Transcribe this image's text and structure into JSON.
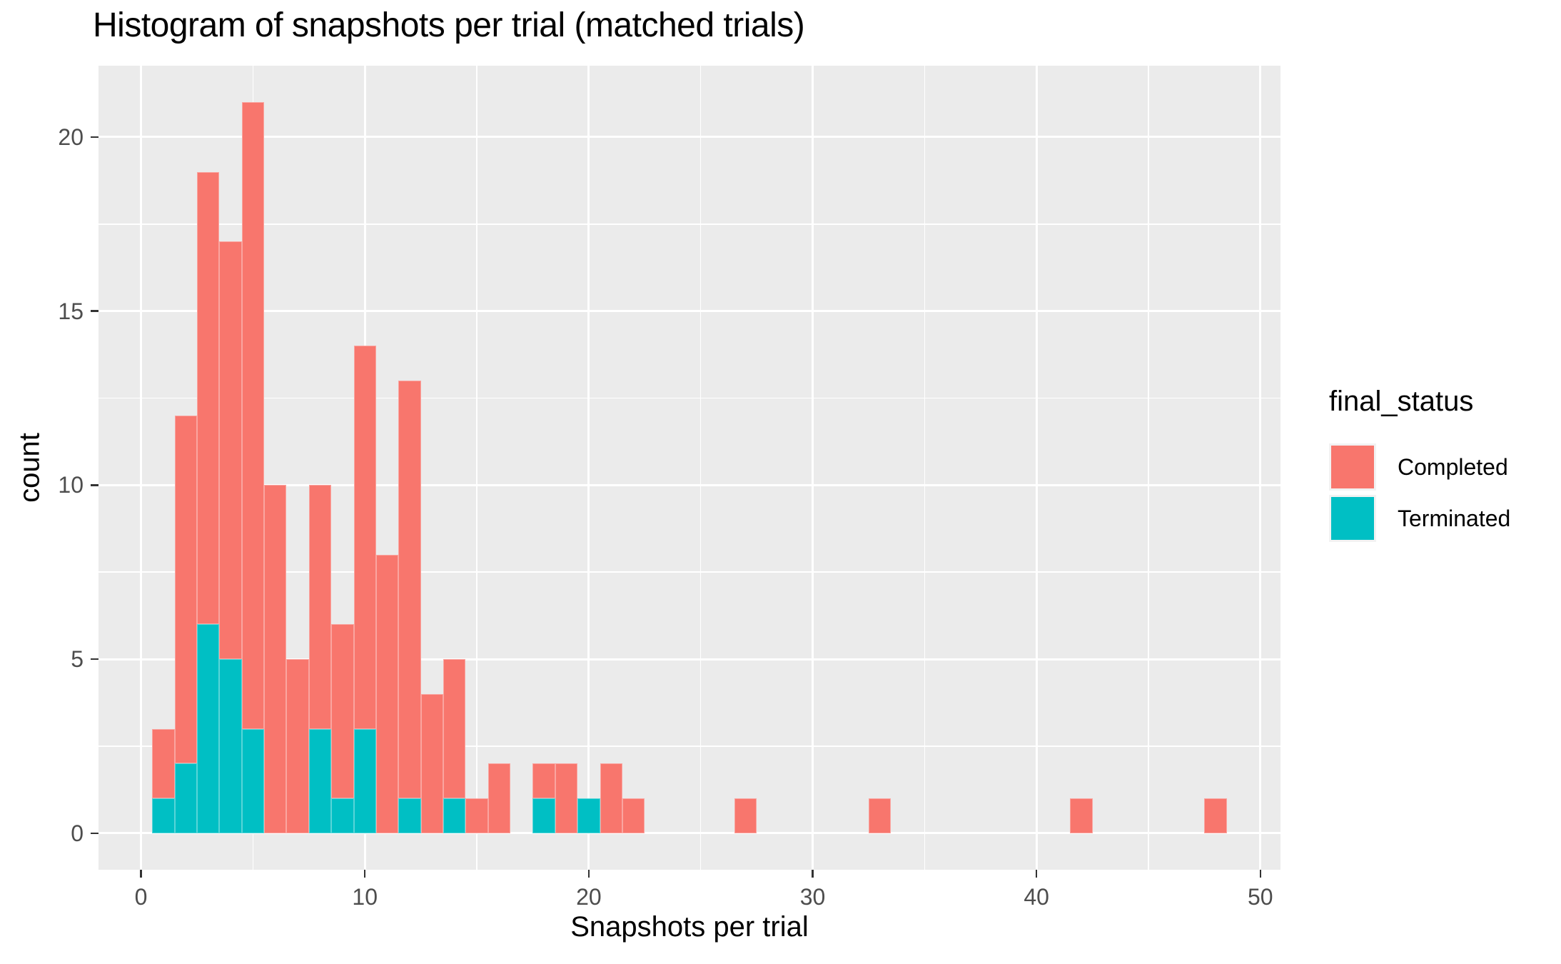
{
  "title": "Histogram of snapshots per trial (matched trials)",
  "axes": {
    "x": {
      "label": "Snapshots per trial"
    },
    "y": {
      "label": "count"
    }
  },
  "legend": {
    "title": "final_status",
    "items": [
      {
        "label": "Completed",
        "color": "#F8766D"
      },
      {
        "label": "Terminated",
        "color": "#00BFC4"
      }
    ]
  },
  "colors": {
    "completed": "#F8766D",
    "terminated": "#00BFC4",
    "panel_background": "#EBEBEB",
    "gridline": "#FFFFFF",
    "tick_mark": "#333333",
    "tick_text": "#4D4D4D",
    "axis_text": "#000000"
  },
  "chart_data": {
    "type": "bar",
    "subtype": "stacked-histogram",
    "title": "Histogram of snapshots per trial (matched trials)",
    "xlabel": "Snapshots per trial",
    "ylabel": "count",
    "grid": true,
    "legend_position": "right",
    "bin_width": 1,
    "stack_order_bottom_to_top": [
      "Terminated",
      "Completed"
    ],
    "x_ticks_major": [
      0,
      10,
      20,
      30,
      40,
      50
    ],
    "x_ticks_minor": [
      5,
      15,
      25,
      35,
      45
    ],
    "y_ticks_major": [
      0,
      5,
      10,
      15,
      20
    ],
    "y_ticks_minor": [
      2.5,
      7.5,
      12.5,
      17.5
    ],
    "x_panel_range": [
      -1.9,
      50.9
    ],
    "y_panel_range": [
      -1.05,
      22.05
    ],
    "xlim": [
      0,
      50
    ],
    "ylim": [
      0,
      21
    ],
    "bins": [
      {
        "x": 1,
        "Terminated": 1,
        "Completed": 2,
        "total": 3
      },
      {
        "x": 2,
        "Terminated": 2,
        "Completed": 10,
        "total": 12
      },
      {
        "x": 3,
        "Terminated": 6,
        "Completed": 13,
        "total": 19
      },
      {
        "x": 4,
        "Terminated": 5,
        "Completed": 12,
        "total": 17
      },
      {
        "x": 5,
        "Terminated": 3,
        "Completed": 18,
        "total": 21
      },
      {
        "x": 6,
        "Terminated": 0,
        "Completed": 10,
        "total": 10
      },
      {
        "x": 7,
        "Terminated": 0,
        "Completed": 5,
        "total": 5
      },
      {
        "x": 8,
        "Terminated": 3,
        "Completed": 7,
        "total": 10
      },
      {
        "x": 9,
        "Terminated": 1,
        "Completed": 5,
        "total": 6
      },
      {
        "x": 10,
        "Terminated": 3,
        "Completed": 11,
        "total": 14
      },
      {
        "x": 11,
        "Terminated": 0,
        "Completed": 8,
        "total": 8
      },
      {
        "x": 12,
        "Terminated": 1,
        "Completed": 12,
        "total": 13
      },
      {
        "x": 13,
        "Terminated": 0,
        "Completed": 4,
        "total": 4
      },
      {
        "x": 14,
        "Terminated": 1,
        "Completed": 4,
        "total": 5
      },
      {
        "x": 15,
        "Terminated": 0,
        "Completed": 1,
        "total": 1
      },
      {
        "x": 16,
        "Terminated": 0,
        "Completed": 2,
        "total": 2
      },
      {
        "x": 18,
        "Terminated": 1,
        "Completed": 1,
        "total": 2
      },
      {
        "x": 19,
        "Terminated": 0,
        "Completed": 2,
        "total": 2
      },
      {
        "x": 20,
        "Terminated": 1,
        "Completed": 0,
        "total": 1
      },
      {
        "x": 21,
        "Terminated": 0,
        "Completed": 2,
        "total": 2
      },
      {
        "x": 22,
        "Terminated": 0,
        "Completed": 1,
        "total": 1
      },
      {
        "x": 27,
        "Terminated": 0,
        "Completed": 1,
        "total": 1
      },
      {
        "x": 33,
        "Terminated": 0,
        "Completed": 1,
        "total": 1
      },
      {
        "x": 42,
        "Terminated": 0,
        "Completed": 1,
        "total": 1
      },
      {
        "x": 48,
        "Terminated": 0,
        "Completed": 1,
        "total": 1
      }
    ]
  }
}
